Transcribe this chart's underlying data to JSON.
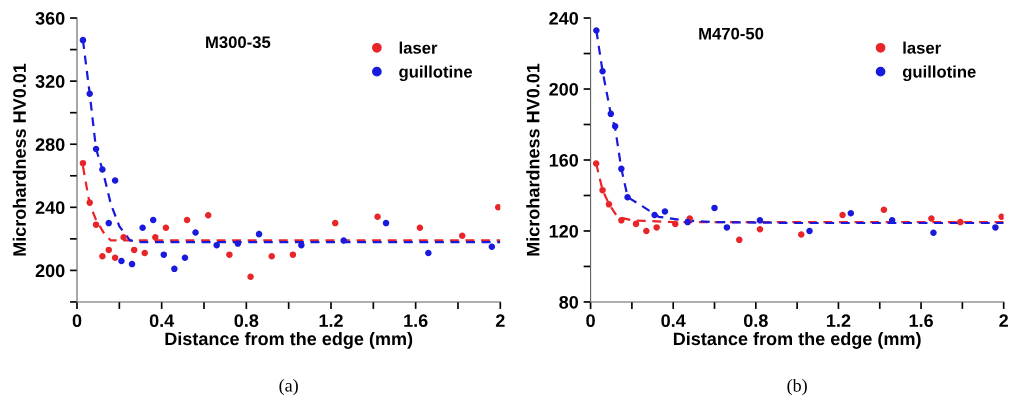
{
  "chart_data": [
    {
      "type": "scatter",
      "title": "M300-35",
      "xlabel": "Distance from the edge (mm)",
      "ylabel": "Microhardness HV0.01",
      "annotations": [
        "(a)"
      ],
      "xlim": [
        0,
        2
      ],
      "xticks": [
        0,
        {
          "value": 0.2,
          "label": null
        },
        0.4,
        {
          "value": 0.6,
          "label": null
        },
        0.8,
        {
          "value": 1.0,
          "label": null
        },
        1.2,
        {
          "value": 1.4,
          "label": null
        },
        1.6,
        {
          "value": 1.8,
          "label": null
        },
        2
      ],
      "ylim": [
        180,
        360
      ],
      "yticks": [
        {
          "value": 180,
          "label": null
        },
        200,
        {
          "value": 220,
          "label": null
        },
        240,
        {
          "value": 260,
          "label": null
        },
        280,
        {
          "value": 300,
          "label": null
        },
        320,
        {
          "value": 340,
          "label": null
        },
        360
      ],
      "legend": "top right",
      "grid": false,
      "marker": "circle",
      "series": [
        {
          "name": "laser",
          "color": "#e8262a",
          "x": [
            0.028,
            0.06,
            0.09,
            0.12,
            0.15,
            0.18,
            0.22,
            0.27,
            0.32,
            0.37,
            0.42,
            0.52,
            0.62,
            0.72,
            0.82,
            0.92,
            1.02,
            1.22,
            1.42,
            1.62,
            1.82,
            1.99
          ],
          "values": [
            268,
            243,
            229,
            209,
            213,
            208,
            221,
            213,
            211,
            221,
            227,
            232,
            235,
            210,
            196,
            209,
            210,
            230,
            234,
            227,
            222,
            240
          ]
        },
        {
          "name": "guillotine",
          "color": "#1a1adc",
          "x": [
            0.028,
            0.06,
            0.09,
            0.12,
            0.15,
            0.18,
            0.21,
            0.26,
            0.31,
            0.36,
            0.41,
            0.46,
            0.51,
            0.56,
            0.66,
            0.76,
            0.86,
            1.06,
            1.26,
            1.46,
            1.66,
            1.96
          ],
          "values": [
            346,
            312,
            277,
            264,
            230,
            257,
            206,
            204,
            227,
            232,
            210,
            201,
            208,
            224,
            216,
            217,
            223,
            216,
            219,
            230,
            211,
            215
          ]
        },
        {
          "type": "line",
          "marker": "none",
          "line_style": "dashed",
          "color": "#e8262a",
          "x": [
            0.028,
            0.06,
            0.09,
            0.13,
            0.16,
            0.25,
            0.5,
            1.0,
            2.0
          ],
          "values": [
            266,
            242,
            232,
            223,
            219,
            219,
            219,
            219,
            219
          ]
        },
        {
          "type": "line",
          "marker": "none",
          "line_style": "dashed",
          "color": "#1a1adc",
          "x": [
            0.028,
            0.06,
            0.09,
            0.12,
            0.16,
            0.2,
            0.25,
            0.3,
            0.5,
            1.0,
            2.0
          ],
          "values": [
            346,
            312,
            277,
            264,
            242,
            228,
            219,
            218,
            218,
            218,
            218
          ]
        }
      ]
    },
    {
      "type": "scatter",
      "title": "M470-50",
      "xlabel": "Distance from the edge (mm)",
      "ylabel": "Microhardness HV0.01",
      "annotations": [
        "(b)"
      ],
      "xlim": [
        0,
        2
      ],
      "xticks": [
        0,
        {
          "value": 0.2,
          "label": null
        },
        0.4,
        {
          "value": 0.6,
          "label": null
        },
        0.8,
        {
          "value": 1.0,
          "label": null
        },
        1.2,
        {
          "value": 1.4,
          "label": null
        },
        1.6,
        {
          "value": 1.8,
          "label": null
        },
        2
      ],
      "ylim": [
        80,
        240
      ],
      "yticks": [
        80,
        {
          "value": 100,
          "label": null
        },
        120,
        {
          "value": 140,
          "label": null
        },
        160,
        {
          "value": 180,
          "label": null
        },
        200,
        {
          "value": 220,
          "label": null
        },
        240
      ],
      "legend": "top right",
      "grid": false,
      "marker": "circle",
      "series": [
        {
          "name": "laser",
          "color": "#e8262a",
          "x": [
            0.027,
            0.058,
            0.089,
            0.149,
            0.22,
            0.27,
            0.32,
            0.41,
            0.48,
            0.72,
            0.82,
            1.02,
            1.22,
            1.42,
            1.65,
            1.79,
            1.99
          ],
          "values": [
            158,
            143,
            135,
            126,
            124,
            120,
            122,
            124,
            127,
            115,
            121,
            118,
            129,
            132,
            127,
            125,
            128
          ]
        },
        {
          "name": "guillotine",
          "color": "#1a1adc",
          "x": [
            0.028,
            0.058,
            0.098,
            0.119,
            0.149,
            0.179,
            0.31,
            0.36,
            0.47,
            0.6,
            0.66,
            0.82,
            1.06,
            1.26,
            1.46,
            1.66,
            1.96
          ],
          "values": [
            233,
            210,
            186,
            179,
            155,
            139,
            129,
            131,
            125,
            133,
            122,
            126,
            120,
            130,
            126,
            119,
            122
          ]
        },
        {
          "type": "line",
          "marker": "none",
          "line_style": "dashed",
          "color": "#e8262a",
          "x": [
            0.027,
            0.058,
            0.09,
            0.13,
            0.2,
            0.4,
            1.0,
            2.0
          ],
          "values": [
            158,
            143,
            135,
            128,
            126,
            125,
            125,
            125
          ]
        },
        {
          "type": "line",
          "marker": "none",
          "line_style": "dashed",
          "color": "#1a1adc",
          "x": [
            0.028,
            0.058,
            0.098,
            0.119,
            0.149,
            0.18,
            0.25,
            0.33,
            0.45,
            0.6,
            1.0,
            2.0
          ],
          "values": [
            233,
            210,
            186,
            178,
            155,
            139,
            134,
            128,
            126,
            125,
            124.5,
            124.5
          ]
        }
      ]
    }
  ]
}
